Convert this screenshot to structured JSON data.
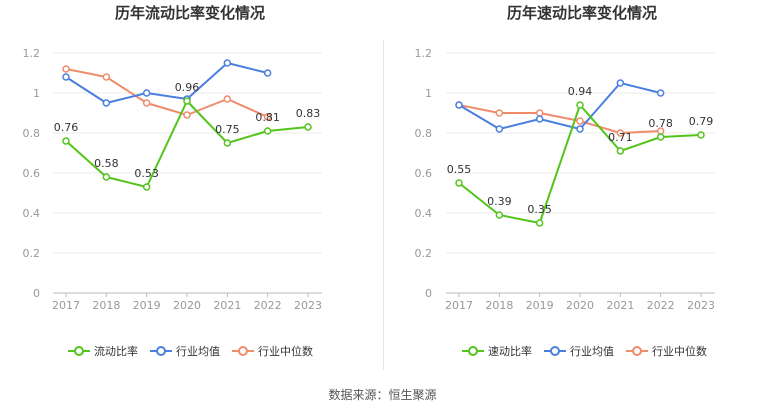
{
  "source_text": "数据来源：恒生聚源",
  "colors": {
    "company": "#52c41a",
    "industry_avg": "#4a7fe0",
    "industry_median": "#f08c6c"
  },
  "chart_data": [
    {
      "type": "line",
      "title": "历年流动比率变化情况",
      "categories": [
        "2017",
        "2018",
        "2019",
        "2020",
        "2021",
        "2022",
        "2023"
      ],
      "yticks": [
        "0",
        "0.2",
        "0.4",
        "0.6",
        "0.8",
        "1",
        "1.2"
      ],
      "ylim": [
        0,
        1.2
      ],
      "grid": true,
      "legend_position": "bottom",
      "series": [
        {
          "name": "流动比率",
          "values": [
            0.76,
            0.58,
            0.53,
            0.96,
            0.75,
            0.81,
            0.83
          ],
          "labels": [
            "0.76",
            "0.58",
            "0.53",
            "0.96",
            "0.75",
            "0.81",
            "0.83"
          ]
        },
        {
          "name": "行业均值",
          "values": [
            1.08,
            0.95,
            1.0,
            0.97,
            1.15,
            1.1,
            null
          ]
        },
        {
          "name": "行业中位数",
          "values": [
            1.12,
            1.08,
            0.95,
            0.89,
            0.97,
            0.88,
            null
          ]
        }
      ]
    },
    {
      "type": "line",
      "title": "历年速动比率变化情况",
      "categories": [
        "2017",
        "2018",
        "2019",
        "2020",
        "2021",
        "2022",
        "2023"
      ],
      "yticks": [
        "0",
        "0.2",
        "0.4",
        "0.6",
        "0.8",
        "1",
        "1.2"
      ],
      "ylim": [
        0,
        1.2
      ],
      "grid": true,
      "legend_position": "bottom",
      "series": [
        {
          "name": "速动比率",
          "values": [
            0.55,
            0.39,
            0.35,
            0.94,
            0.71,
            0.78,
            0.79
          ],
          "labels": [
            "0.55",
            "0.39",
            "0.35",
            "0.94",
            "0.71",
            "0.78",
            "0.79"
          ]
        },
        {
          "name": "行业均值",
          "values": [
            0.94,
            0.82,
            0.87,
            0.82,
            1.05,
            1.0,
            null
          ]
        },
        {
          "name": "行业中位数",
          "values": [
            0.94,
            0.9,
            0.9,
            0.86,
            0.8,
            0.81,
            null
          ]
        }
      ]
    }
  ]
}
